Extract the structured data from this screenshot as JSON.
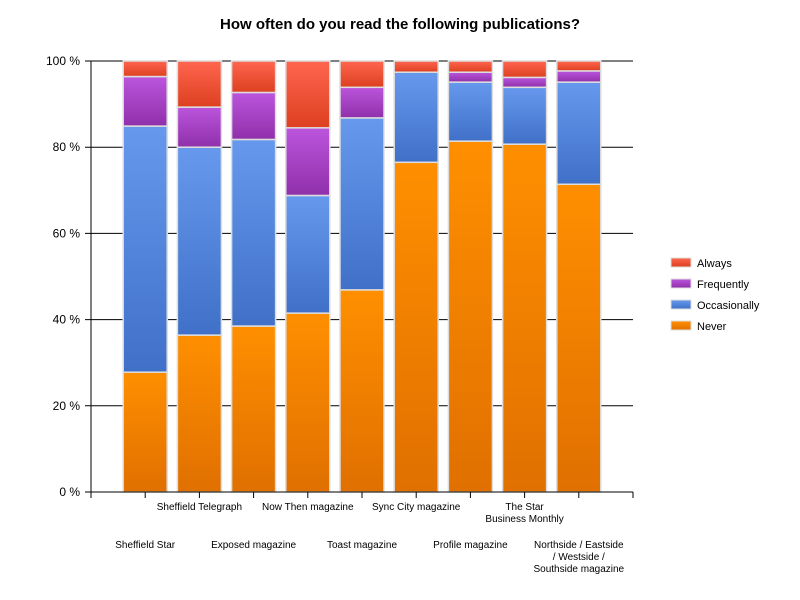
{
  "chart_data": {
    "type": "bar",
    "stacked": true,
    "normalized_percent": true,
    "title": "How often do you read the following publications?",
    "xlabel": "",
    "ylabel": "",
    "ylim": [
      0,
      100
    ],
    "yticks": [
      0,
      20,
      40,
      60,
      80,
      100
    ],
    "ytick_labels": [
      "0 %",
      "20 %",
      "40 %",
      "60 %",
      "80 %",
      "100 %"
    ],
    "grid": true,
    "legend_position": "right",
    "categories": [
      "Sheffield Star",
      "Sheffield Telegraph",
      "Exposed magazine",
      "Now Then magazine",
      "Toast magazine",
      "Sync City magazine",
      "Profile magazine",
      "The Star Business Monthly",
      "Northside / Eastside / Westside / Southside magazine"
    ],
    "category_label_lines": [
      [
        "Sheffield Star"
      ],
      [
        "Sheffield Telegraph"
      ],
      [
        "Exposed magazine"
      ],
      [
        "Now Then magazine"
      ],
      [
        "Toast magazine"
      ],
      [
        "Sync City magazine"
      ],
      [
        "Profile magazine"
      ],
      [
        "The Star",
        "Business Monthly"
      ],
      [
        "Northside / Eastside",
        "/ Westside /",
        "Southside magazine"
      ]
    ],
    "series": [
      {
        "name": "Never",
        "color": "#f08400",
        "color_top": "#ff8f00",
        "color_bottom": "#e07000",
        "values": [
          27.8,
          36.4,
          38.5,
          41.5,
          46.9,
          76.5,
          81.4,
          80.7,
          71.4
        ]
      },
      {
        "name": "Occasionally",
        "color": "#5588dd",
        "color_top": "#6699ee",
        "color_bottom": "#4070c8",
        "values": [
          57.1,
          43.6,
          43.3,
          27.3,
          39.9,
          20.9,
          13.7,
          13.2,
          23.7
        ]
      },
      {
        "name": "Frequently",
        "color": "#aa44cc",
        "color_top": "#bb55dd",
        "color_bottom": "#9030aa",
        "values": [
          11.5,
          9.3,
          10.9,
          15.7,
          7.1,
          0.0,
          2.3,
          2.3,
          2.6
        ]
      },
      {
        "name": "Always",
        "color": "#ee5533",
        "color_top": "#ff6650",
        "color_bottom": "#dd4020",
        "values": [
          3.6,
          10.7,
          7.3,
          15.5,
          6.1,
          2.6,
          2.6,
          3.8,
          2.3
        ]
      }
    ],
    "legend_order": [
      "Always",
      "Frequently",
      "Occasionally",
      "Never"
    ]
  }
}
